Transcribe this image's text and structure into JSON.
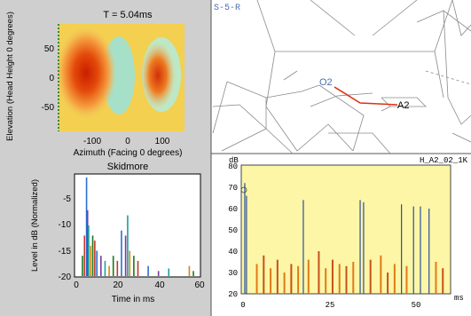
{
  "heatmap_panel": {
    "title": "T = 5.04ms",
    "xlabel": "Azimuth (Facing 0 degrees)",
    "ylabel": "Elevation (Head Height 0 degrees)",
    "x_ticks": [
      "-100",
      "0",
      "100"
    ],
    "y_ticks": [
      "50",
      "0",
      "-50"
    ]
  },
  "impulse_panel": {
    "title": "Skidmore",
    "xlabel": "Time in ms",
    "ylabel": "Level in dB (Normalized)",
    "x_ticks": [
      "0",
      "20",
      "40",
      "60"
    ],
    "y_ticks": [
      "-5",
      "-10",
      "-15",
      "-20"
    ]
  },
  "model_panel": {
    "title": "S-5-R",
    "source_label": "O2",
    "receiver_label": "A2"
  },
  "echogram_panel": {
    "title": "H_A2_02_1K",
    "y_unit": "dB",
    "x_unit": "ms",
    "y_ticks": [
      "80",
      "70",
      "60",
      "50",
      "40",
      "30",
      "20"
    ],
    "x_ticks": [
      "0",
      "25",
      "50"
    ]
  },
  "chart_data": [
    {
      "type": "heatmap",
      "title": "T = 5.04ms",
      "xlabel": "Azimuth (Facing 0 degrees)",
      "ylabel": "Elevation (Head Height 0 degrees)",
      "xlim": [
        -180,
        180
      ],
      "ylim": [
        -90,
        90
      ],
      "hotspots": [
        {
          "azimuth": -110,
          "elevation": 15,
          "level": "high"
        },
        {
          "azimuth": 75,
          "elevation": 5,
          "level": "high"
        }
      ]
    },
    {
      "type": "bar",
      "title": "Skidmore",
      "xlabel": "Time in ms",
      "ylabel": "Level in dB (Normalized)",
      "xlim": [
        0,
        60
      ],
      "ylim": [
        -20,
        0
      ],
      "x": [
        3,
        4,
        5,
        5.5,
        6,
        7,
        8,
        9,
        10,
        12,
        14,
        16,
        18,
        20,
        22,
        24,
        25,
        26,
        28,
        30,
        35,
        40,
        45,
        55,
        57
      ],
      "values": [
        -16,
        -12,
        -0.5,
        -7,
        -10,
        -14,
        -12,
        -13,
        -15,
        -16,
        -17,
        -18,
        -16,
        -17,
        -11,
        -12,
        -8,
        -15,
        -16,
        -17,
        -18,
        -19,
        -18.5,
        -18,
        -19
      ]
    },
    {
      "type": "bar",
      "title": "H_A2_02_1K",
      "ylabel": "dB",
      "xlabel": "ms",
      "xlim": [
        0,
        60
      ],
      "ylim": [
        20,
        80
      ],
      "x": [
        0.5,
        1,
        4,
        6,
        8,
        10,
        12,
        14,
        16,
        17.5,
        19,
        22,
        24,
        26,
        28,
        30,
        32,
        34,
        35,
        37,
        40,
        42,
        44,
        46,
        47.5,
        49.5,
        51.5,
        54,
        56,
        58
      ],
      "values": [
        72,
        66,
        34,
        38,
        32,
        36,
        30,
        34,
        33,
        64,
        36,
        40,
        32,
        36,
        34,
        33,
        35,
        64,
        63,
        36,
        38,
        30,
        34,
        62,
        33,
        61,
        61,
        60,
        35,
        32
      ]
    }
  ]
}
